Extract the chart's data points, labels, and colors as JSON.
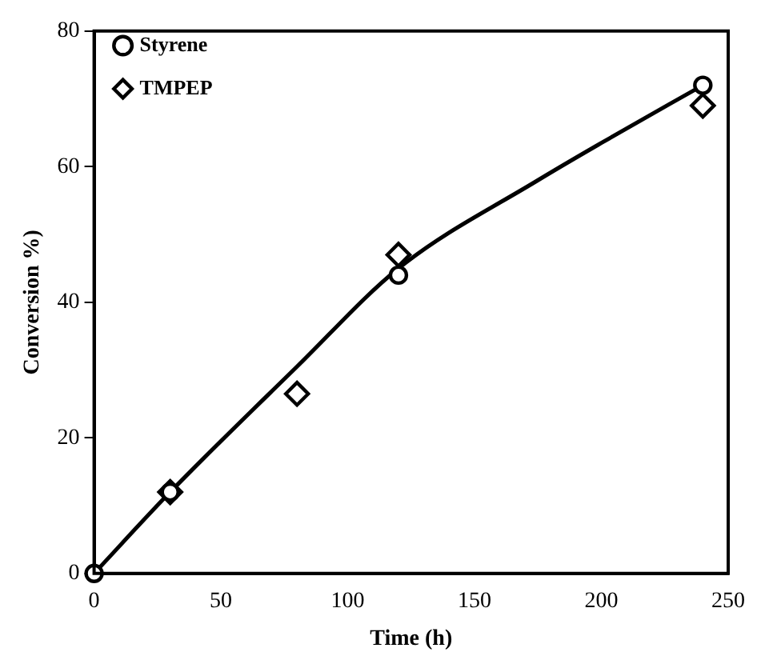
{
  "chart_data": {
    "type": "scatter",
    "xlabel": "Time (h)",
    "ylabel": "Conversion %)",
    "xlim": [
      0,
      250
    ],
    "ylim": [
      0,
      80
    ],
    "xticks": [
      0,
      50,
      100,
      150,
      200,
      250
    ],
    "yticks": [
      0,
      20,
      40,
      60,
      80
    ],
    "grid": false,
    "legend": "top left",
    "series": [
      {
        "name": "Styrene",
        "color": "#000000",
        "marker": "circle",
        "x": [
          0,
          30,
          120,
          240
        ],
        "values": [
          0,
          12,
          44,
          72
        ]
      },
      {
        "name": "TMPEP",
        "color": "#000000",
        "marker": "diamond",
        "x": [
          30,
          80,
          120,
          240
        ],
        "values": [
          12,
          26.5,
          47,
          69
        ]
      },
      {
        "type": "line",
        "color": "#000000",
        "marker": "none",
        "x": [
          0,
          30,
          80,
          120,
          175,
          200,
          240
        ],
        "values": [
          0,
          12,
          30.5,
          45,
          58,
          63.5,
          72
        ]
      }
    ]
  }
}
